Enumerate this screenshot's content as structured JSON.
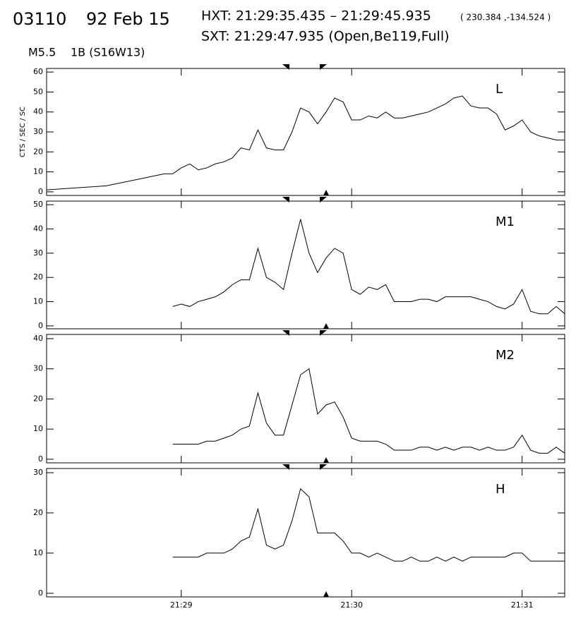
{
  "header": {
    "id": "03110",
    "date": "92 Feb 15",
    "hxt": "HXT: 21:29:35.435 – 21:29:45.935",
    "coords": "( 230.384 ,-134.524 )",
    "sxt": "SXT: 21:29:47.935 (Open,Be119,Full)",
    "goes_class": "M5.5",
    "optical": "1B (S16W13)"
  },
  "chart_data": [
    {
      "type": "line",
      "label": "L",
      "y_label": "CTS / SEC / SC",
      "color": "#000000",
      "x": [
        28.21,
        28.56,
        28.9,
        28.95,
        29,
        29.05,
        29.1,
        29.15,
        29.2,
        29.25,
        29.3,
        29.35,
        29.4,
        29.45,
        29.5,
        29.55,
        29.6,
        29.65,
        29.7,
        29.75,
        29.8,
        29.85,
        29.9,
        29.95,
        30,
        30.05,
        30.1,
        30.15,
        30.2,
        30.25,
        30.3,
        30.35,
        30.4,
        30.45,
        30.5,
        30.55,
        30.6,
        30.65,
        30.7,
        30.75,
        30.8,
        30.85,
        30.9,
        30.95,
        31,
        31.05,
        31.1,
        31.15,
        31.2,
        31.25
      ],
      "values": [
        1,
        3,
        9,
        9,
        12,
        14,
        11,
        12,
        14,
        15,
        17,
        22,
        21,
        31,
        22,
        21,
        21,
        30,
        42,
        40,
        34,
        40,
        47,
        45,
        36,
        36,
        38,
        37,
        40,
        37,
        37,
        38,
        39,
        40,
        42,
        44,
        47,
        48,
        43,
        42,
        42,
        39,
        31,
        33,
        36,
        30,
        28,
        27,
        26,
        26
      ],
      "xlim": [
        28.21,
        31.25
      ],
      "ylim": [
        -1.8,
        61.8
      ],
      "yticks": [
        0,
        10,
        20,
        30,
        40,
        50,
        60
      ]
    },
    {
      "type": "line",
      "label": "M1",
      "color": "#000000",
      "x": [
        28.95,
        29,
        29.05,
        29.1,
        29.15,
        29.2,
        29.25,
        29.3,
        29.35,
        29.4,
        29.45,
        29.5,
        29.55,
        29.6,
        29.65,
        29.7,
        29.75,
        29.8,
        29.85,
        29.9,
        29.95,
        30,
        30.05,
        30.1,
        30.15,
        30.2,
        30.25,
        30.3,
        30.35,
        30.4,
        30.45,
        30.5,
        30.55,
        30.6,
        30.65,
        30.7,
        30.75,
        30.8,
        30.85,
        30.9,
        30.95,
        31,
        31.05,
        31.1,
        31.15,
        31.2,
        31.25
      ],
      "values": [
        8,
        9,
        8,
        10,
        11,
        12,
        14,
        17,
        19,
        19,
        32,
        20,
        18,
        15,
        30,
        44,
        30,
        22,
        28,
        32,
        30,
        15,
        13,
        16,
        15,
        17,
        10,
        10,
        10,
        11,
        11,
        10,
        12,
        12,
        12,
        12,
        11,
        10,
        8,
        7,
        9,
        15,
        6,
        5,
        5,
        8,
        5
      ],
      "xlim": [
        28.21,
        31.25
      ],
      "ylim": [
        -1.2,
        51.5
      ],
      "yticks": [
        0,
        10,
        20,
        30,
        40,
        50
      ]
    },
    {
      "type": "line",
      "label": "M2",
      "color": "#000000",
      "x": [
        28.95,
        29,
        29.05,
        29.1,
        29.15,
        29.2,
        29.25,
        29.3,
        29.35,
        29.4,
        29.45,
        29.5,
        29.55,
        29.6,
        29.65,
        29.7,
        29.75,
        29.8,
        29.85,
        29.9,
        29.95,
        30,
        30.05,
        30.1,
        30.15,
        30.2,
        30.25,
        30.3,
        30.35,
        30.4,
        30.45,
        30.5,
        30.55,
        30.6,
        30.65,
        30.7,
        30.75,
        30.8,
        30.85,
        30.9,
        30.95,
        31,
        31.05,
        31.1,
        31.15,
        31.2,
        31.25
      ],
      "values": [
        5,
        5,
        5,
        5,
        6,
        6,
        7,
        8,
        10,
        11,
        22,
        12,
        8,
        8,
        18,
        28,
        30,
        15,
        18,
        19,
        14,
        7,
        6,
        6,
        6,
        5,
        3,
        3,
        3,
        4,
        4,
        3,
        4,
        3,
        4,
        4,
        3,
        4,
        3,
        3,
        4,
        8,
        3,
        2,
        2,
        4,
        2
      ],
      "xlim": [
        28.21,
        31.25
      ],
      "ylim": [
        -1.2,
        41.4
      ],
      "yticks": [
        0,
        10,
        20,
        30,
        40
      ]
    },
    {
      "type": "line",
      "label": "H",
      "color": "#000000",
      "x": [
        28.95,
        29,
        29.05,
        29.1,
        29.15,
        29.2,
        29.25,
        29.3,
        29.35,
        29.4,
        29.45,
        29.5,
        29.55,
        29.6,
        29.65,
        29.7,
        29.75,
        29.8,
        29.85,
        29.9,
        29.95,
        30,
        30.05,
        30.1,
        30.15,
        30.2,
        30.25,
        30.3,
        30.35,
        30.4,
        30.45,
        30.5,
        30.55,
        30.6,
        30.65,
        30.7,
        30.75,
        30.8,
        30.85,
        30.9,
        30.95,
        31,
        31.05,
        31.1,
        31.15,
        31.2,
        31.25
      ],
      "values": [
        9,
        9,
        9,
        9,
        10,
        10,
        10,
        11,
        13,
        14,
        21,
        12,
        11,
        12,
        18,
        26,
        24,
        15,
        15,
        15,
        13,
        10,
        10,
        9,
        10,
        9,
        8,
        8,
        9,
        8,
        8,
        9,
        8,
        9,
        8,
        9,
        9,
        9,
        9,
        9,
        10,
        10,
        8,
        8,
        8,
        8,
        8
      ],
      "xlim": [
        28.21,
        31.25
      ],
      "ylim": [
        -0.9,
        31.05
      ],
      "yticks": [
        0,
        10,
        20,
        30
      ],
      "xticks": [
        {
          "value": 29,
          "label": "21:29"
        },
        {
          "value": 30,
          "label": "21:30"
        },
        {
          "value": 31,
          "label": "21:31"
        }
      ]
    }
  ]
}
